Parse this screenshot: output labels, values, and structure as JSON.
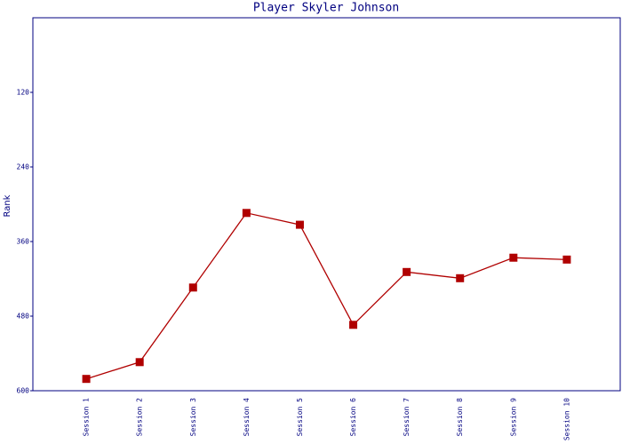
{
  "chart_data": {
    "type": "line",
    "title": "Player Skyler Johnson",
    "y_label": "Rank",
    "categories": [
      "Session 1",
      "Session 2",
      "Session 3",
      "Session 4",
      "Session 5",
      "Session 6",
      "Session 7",
      "Session 8",
      "Session 9",
      "Session 10"
    ],
    "series": [
      {
        "name": "Rank",
        "color": "#b00000",
        "values": [
          581,
          554,
          434,
          314,
          333,
          494,
          409,
          419,
          386,
          389
        ]
      }
    ],
    "ylim": [
      0,
      600
    ],
    "yticks": [
      120,
      240,
      360,
      480,
      600
    ],
    "y_reversed": true,
    "grid": false
  }
}
